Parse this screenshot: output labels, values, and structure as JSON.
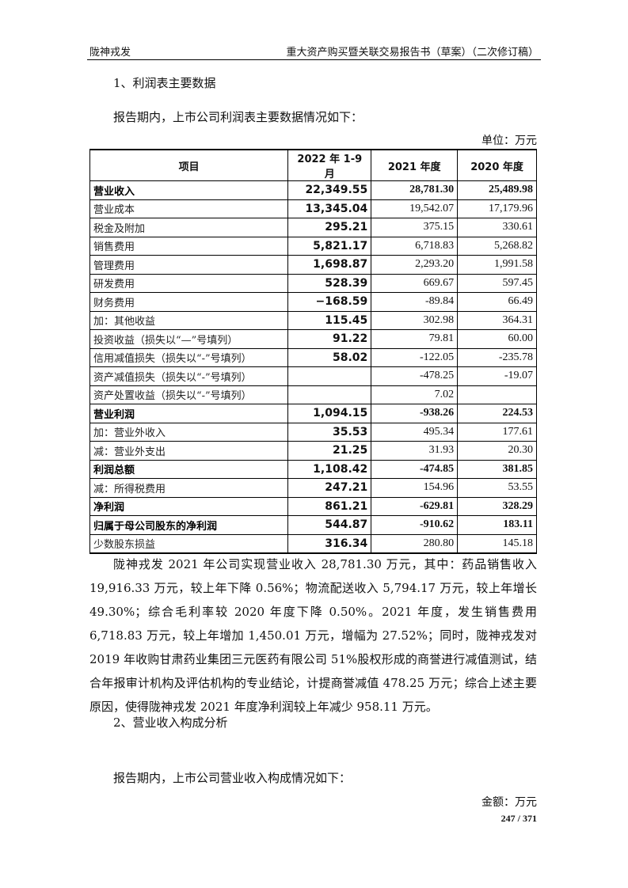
{
  "header": {
    "left": "陇神戎发",
    "right": "重大资产购买暨关联交易报告书（草案）（二次修订稿）"
  },
  "section1": {
    "title": "1、利润表主要数据",
    "intro": "报告期内，上市公司利润表主要数据情况如下：",
    "unit": "单位：万元"
  },
  "table": {
    "columns": [
      "项目",
      "2022 年 1-9 月",
      "2021 年度",
      "2020 年度"
    ],
    "rows": [
      {
        "label": "营业收入",
        "v": [
          "22,349.55",
          "28,781.30",
          "25,489.98"
        ],
        "bold": true
      },
      {
        "label": "营业成本",
        "v": [
          "13,345.04",
          "19,542.07",
          "17,179.96"
        ]
      },
      {
        "label": "税金及附加",
        "v": [
          "295.21",
          "375.15",
          "330.61"
        ]
      },
      {
        "label": "销售费用",
        "v": [
          "5,821.17",
          "6,718.83",
          "5,268.82"
        ]
      },
      {
        "label": "管理费用",
        "v": [
          "1,698.87",
          "2,293.20",
          "1,991.58"
        ]
      },
      {
        "label": "研发费用",
        "v": [
          "528.39",
          "669.67",
          "597.45"
        ]
      },
      {
        "label": "财务费用",
        "v": [
          "−168.59",
          "-89.84",
          "66.49"
        ]
      },
      {
        "label": "加：其他收益",
        "v": [
          "115.45",
          "302.98",
          "364.31"
        ]
      },
      {
        "label": "投资收益（损失以“—”号填列）",
        "v": [
          "91.22",
          "79.81",
          "60.00"
        ]
      },
      {
        "label": "信用减值损失（损失以“-”号填列）",
        "v": [
          "58.02",
          "-122.05",
          "-235.78"
        ]
      },
      {
        "label": "资产减值损失（损失以“-”号填列）",
        "v": [
          "",
          "-478.25",
          "-19.07"
        ]
      },
      {
        "label": "资产处置收益（损失以“-”号填列）",
        "v": [
          "",
          "7.02",
          ""
        ]
      },
      {
        "label": "营业利润",
        "v": [
          "1,094.15",
          "-938.26",
          "224.53"
        ],
        "bold": true
      },
      {
        "label": "加：营业外收入",
        "v": [
          "35.53",
          "495.34",
          "177.61"
        ]
      },
      {
        "label": "减：营业外支出",
        "v": [
          "21.25",
          "31.93",
          "20.30"
        ]
      },
      {
        "label": "利润总额",
        "v": [
          "1,108.42",
          "-474.85",
          "381.85"
        ],
        "bold": true
      },
      {
        "label": "减：所得税费用",
        "v": [
          "247.21",
          "154.96",
          "53.55"
        ]
      },
      {
        "label": "净利润",
        "v": [
          "861.21",
          "-629.81",
          "328.29"
        ],
        "bold": true
      },
      {
        "label": "归属于母公司股东的净利润",
        "v": [
          "544.87",
          "-910.62",
          "183.11"
        ],
        "bold": true
      },
      {
        "label": "少数股东损益",
        "v": [
          "316.34",
          "280.80",
          "145.18"
        ]
      }
    ]
  },
  "paragraph": "陇神戎发 2021 年公司实现营业收入 28,781.30 万元，其中：药品销售收入 19,916.33 万元，较上年下降 0.56%；物流配送收入 5,794.17 万元，较上年增长 49.30%；综合毛利率较 2020 年度下降 0.50%。2021 年度，发生销售费用 6,718.83 万元，较上年增加 1,450.01 万元，增幅为 27.52%；同时，陇神戎发对 2019 年收购甘肃药业集团三元医药有限公司 51%股权形成的商誉进行减值测试，结合年报审计机构及评估机构的专业结论，计提商誉减值 478.25 万元；综合上述主要原因，使得陇神戎发 2021 年度净利润较上年减少 958.11 万元。",
  "section2": {
    "title": "2、营业收入构成分析",
    "intro": "报告期内，上市公司营业收入构成情况如下：",
    "unit": "金额：万元"
  },
  "page_number": "247 / 371"
}
